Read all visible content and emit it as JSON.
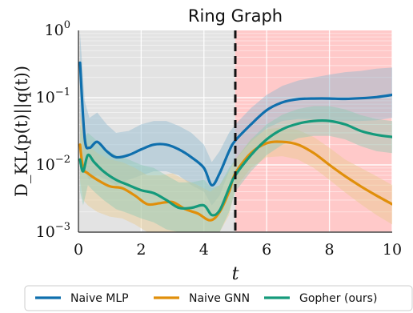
{
  "chart_data": {
    "type": "line",
    "title": "Ring Graph",
    "xlabel": "t",
    "ylabel": "D_KL(p(t)||q(t))",
    "xlim": [
      0,
      10
    ],
    "ylim": [
      0.001,
      1
    ],
    "yscale": "log",
    "grid": true,
    "legend_position": "bottom",
    "x_ticks": [
      "0",
      "2",
      "4",
      "6",
      "8",
      "10"
    ],
    "x_tick_values": [
      0,
      2,
      4,
      6,
      8,
      10
    ],
    "y_ticks": [
      {
        "base": "10",
        "exp": "0",
        "value": 1
      },
      {
        "base": "10",
        "exp": "−1",
        "value": 0.1
      },
      {
        "base": "10",
        "exp": "−2",
        "value": 0.01
      },
      {
        "base": "10",
        "exp": "−3",
        "value": 0.001
      }
    ],
    "annotations": {
      "train_region": {
        "from": 0,
        "to": 5,
        "color": "#e3e3e3"
      },
      "extrapolation_region": {
        "from": 5,
        "to": 10,
        "color": "#ffc9c9"
      },
      "divider_x": 5
    },
    "series": [
      {
        "name": "Naive MLP",
        "color": "#0f6fad",
        "band_color": "#8fb9cf",
        "x": [
          0.05,
          0.2,
          0.35,
          0.6,
          0.9,
          1.2,
          1.6,
          2.0,
          2.4,
          2.8,
          3.2,
          3.6,
          4.0,
          4.25,
          4.5,
          4.8,
          5.0,
          5.5,
          6.0,
          6.5,
          7.0,
          7.5,
          8.0,
          8.5,
          9.0,
          9.5,
          10.0
        ],
        "y": [
          0.33,
          0.025,
          0.018,
          0.022,
          0.016,
          0.013,
          0.014,
          0.017,
          0.02,
          0.02,
          0.017,
          0.013,
          0.009,
          0.005,
          0.0075,
          0.016,
          0.023,
          0.04,
          0.065,
          0.085,
          0.095,
          0.097,
          0.097,
          0.096,
          0.098,
          0.102,
          0.11
        ],
        "y_upper": [
          0.9,
          0.09,
          0.05,
          0.06,
          0.04,
          0.03,
          0.032,
          0.04,
          0.045,
          0.045,
          0.038,
          0.03,
          0.02,
          0.011,
          0.016,
          0.03,
          0.04,
          0.07,
          0.11,
          0.15,
          0.18,
          0.2,
          0.22,
          0.24,
          0.25,
          0.27,
          0.28
        ],
        "y_lower": [
          0.05,
          0.008,
          0.006,
          0.007,
          0.006,
          0.005,
          0.006,
          0.007,
          0.008,
          0.008,
          0.007,
          0.005,
          0.004,
          0.0025,
          0.0035,
          0.008,
          0.012,
          0.022,
          0.035,
          0.045,
          0.048,
          0.048,
          0.046,
          0.045,
          0.045,
          0.046,
          0.05
        ]
      },
      {
        "name": "Naive GNN",
        "color": "#e08f0b",
        "band_color": "#e8c98f",
        "x": [
          0.05,
          0.15,
          0.3,
          0.6,
          1.0,
          1.4,
          1.8,
          2.2,
          2.6,
          3.0,
          3.4,
          3.8,
          4.2,
          4.5,
          4.8,
          5.0,
          5.5,
          6.0,
          6.5,
          7.0,
          7.5,
          8.0,
          8.5,
          9.0,
          9.5,
          10.0
        ],
        "y": [
          0.02,
          0.009,
          0.0075,
          0.006,
          0.0048,
          0.0045,
          0.0035,
          0.0026,
          0.0027,
          0.0028,
          0.0022,
          0.0019,
          0.0015,
          0.002,
          0.004,
          0.0075,
          0.015,
          0.021,
          0.022,
          0.02,
          0.015,
          0.01,
          0.0068,
          0.0048,
          0.0035,
          0.0026
        ],
        "y_upper": [
          0.06,
          0.03,
          0.02,
          0.015,
          0.012,
          0.011,
          0.009,
          0.007,
          0.007,
          0.0075,
          0.006,
          0.005,
          0.004,
          0.005,
          0.008,
          0.012,
          0.024,
          0.034,
          0.036,
          0.033,
          0.026,
          0.018,
          0.012,
          0.009,
          0.0068,
          0.005
        ],
        "y_lower": [
          0.006,
          0.003,
          0.0025,
          0.002,
          0.0017,
          0.0016,
          0.0013,
          0.001,
          0.001,
          0.001,
          0.001,
          0.001,
          0.001,
          0.001,
          0.0018,
          0.0045,
          0.009,
          0.013,
          0.0135,
          0.012,
          0.009,
          0.006,
          0.0039,
          0.0026,
          0.0018,
          0.0013
        ]
      },
      {
        "name": "Gopher (ours)",
        "color": "#159a7b",
        "band_color": "#8ec9b3",
        "x": [
          0.05,
          0.15,
          0.3,
          0.5,
          0.8,
          1.2,
          1.6,
          2.0,
          2.4,
          2.8,
          3.2,
          3.6,
          4.0,
          4.25,
          4.5,
          4.8,
          5.0,
          5.5,
          6.0,
          6.5,
          7.0,
          7.5,
          8.0,
          8.5,
          9.0,
          9.5,
          10.0
        ],
        "y": [
          0.012,
          0.008,
          0.014,
          0.011,
          0.008,
          0.006,
          0.005,
          0.0042,
          0.0038,
          0.003,
          0.0023,
          0.0023,
          0.0025,
          0.0018,
          0.0021,
          0.0045,
          0.007,
          0.014,
          0.024,
          0.034,
          0.041,
          0.045,
          0.045,
          0.04,
          0.032,
          0.028,
          0.026
        ],
        "y_upper": [
          0.04,
          0.025,
          0.03,
          0.025,
          0.018,
          0.014,
          0.012,
          0.01,
          0.009,
          0.007,
          0.0055,
          0.0055,
          0.006,
          0.0045,
          0.005,
          0.009,
          0.012,
          0.024,
          0.04,
          0.056,
          0.068,
          0.075,
          0.075,
          0.067,
          0.055,
          0.048,
          0.045
        ],
        "y_lower": [
          0.004,
          0.0025,
          0.005,
          0.004,
          0.003,
          0.0022,
          0.0019,
          0.0016,
          0.0014,
          0.0011,
          0.001,
          0.001,
          0.001,
          0.001,
          0.001,
          0.002,
          0.004,
          0.008,
          0.014,
          0.02,
          0.025,
          0.027,
          0.027,
          0.024,
          0.019,
          0.016,
          0.015
        ]
      }
    ]
  }
}
